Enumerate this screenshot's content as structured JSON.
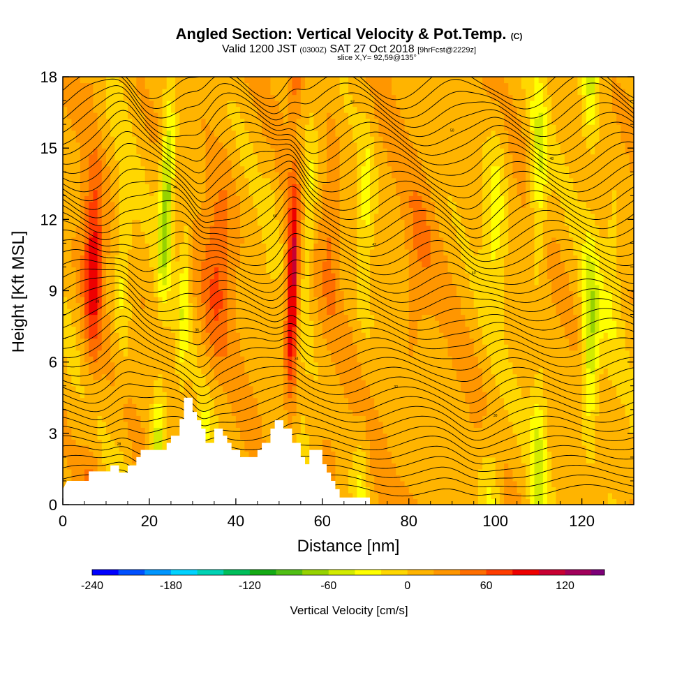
{
  "header": {
    "title_main": "Angled Section: Vertical Velocity & Pot.Temp.",
    "title_unit": "(C)",
    "valid_prefix": "Valid 1200 JST",
    "valid_zulu": "(0300Z)",
    "valid_date": "SAT 27 Oct 2018",
    "forecast": "[9hrFcst@2229z]",
    "slice": "slice X,Y= 92,59@135°"
  },
  "chart_data": {
    "type": "heatmap",
    "xlabel": "Distance [nm]",
    "ylabel": "Height [Kft MSL]",
    "xlim": [
      0,
      132
    ],
    "ylim": [
      0,
      18
    ],
    "x_ticks": [
      0,
      20,
      40,
      60,
      80,
      100,
      120
    ],
    "y_ticks": [
      0,
      3,
      6,
      9,
      12,
      15,
      18
    ],
    "colorbar": {
      "label": "Vertical Velocity [cm/s]",
      "min": -240,
      "max": 150,
      "step": 20,
      "tick_values": [
        -240,
        -180,
        -120,
        -60,
        0,
        60,
        120
      ],
      "colors": [
        "#0000ff",
        "#0050ff",
        "#0096ff",
        "#00d2ff",
        "#00d2b4",
        "#00be5a",
        "#14aa14",
        "#50be14",
        "#96d200",
        "#d2eb00",
        "#ffff00",
        "#ffd700",
        "#ffb400",
        "#ff9600",
        "#ff6e00",
        "#ff3c00",
        "#ee0000",
        "#c80032",
        "#a0005a",
        "#7d0078"
      ]
    },
    "terrain": [
      [
        0,
        0.65
      ],
      [
        1,
        1
      ],
      [
        6,
        1
      ],
      [
        6,
        1.4
      ],
      [
        11,
        1.4
      ],
      [
        11,
        1.65
      ],
      [
        13,
        1.65
      ],
      [
        13,
        1.35
      ],
      [
        15,
        1.35
      ],
      [
        15,
        1.65
      ],
      [
        17,
        1.65
      ],
      [
        17,
        2
      ],
      [
        18,
        2
      ],
      [
        18,
        2.3
      ],
      [
        24,
        2.3
      ],
      [
        24,
        2.6
      ],
      [
        25,
        2.6
      ],
      [
        25,
        2.9
      ],
      [
        27,
        2.9
      ],
      [
        27,
        3.6
      ],
      [
        28,
        3.6
      ],
      [
        28,
        4.5
      ],
      [
        30,
        4.5
      ],
      [
        30,
        3.9
      ],
      [
        31,
        3.9
      ],
      [
        31,
        3.55
      ],
      [
        32,
        3.55
      ],
      [
        32,
        3.2
      ],
      [
        33,
        3.2
      ],
      [
        33,
        2.6
      ],
      [
        35,
        2.6
      ],
      [
        35,
        3.2
      ],
      [
        37,
        3.2
      ],
      [
        37,
        2.9
      ],
      [
        38,
        2.9
      ],
      [
        38,
        2.6
      ],
      [
        39,
        2.6
      ],
      [
        39,
        2.3
      ],
      [
        41,
        2.3
      ],
      [
        41,
        2
      ],
      [
        45,
        2
      ],
      [
        45,
        2.3
      ],
      [
        46,
        2.3
      ],
      [
        46,
        2.6
      ],
      [
        48,
        2.6
      ],
      [
        48,
        3.2
      ],
      [
        49,
        3.2
      ],
      [
        49,
        3.55
      ],
      [
        51,
        3.55
      ],
      [
        51,
        3.2
      ],
      [
        53,
        3.2
      ],
      [
        53,
        2.6
      ],
      [
        55,
        2.6
      ],
      [
        55,
        2
      ],
      [
        56,
        2
      ],
      [
        56,
        1.7
      ],
      [
        57,
        1.7
      ],
      [
        57,
        2.3
      ],
      [
        60,
        2.3
      ],
      [
        60,
        1.7
      ],
      [
        61,
        1.7
      ],
      [
        61,
        1.35
      ],
      [
        62,
        1.35
      ],
      [
        62,
        1
      ],
      [
        63,
        1
      ],
      [
        63,
        0.65
      ],
      [
        64,
        0.65
      ],
      [
        64,
        0.3
      ],
      [
        71,
        0.3
      ],
      [
        71,
        0
      ],
      [
        132,
        0
      ]
    ],
    "isentrope_labels": [
      "24",
      "28",
      "30",
      "32",
      "34",
      "36",
      "38",
      "40",
      "42",
      "44",
      "46",
      "48",
      "50",
      "52",
      "54",
      "56",
      "58",
      "60"
    ]
  }
}
